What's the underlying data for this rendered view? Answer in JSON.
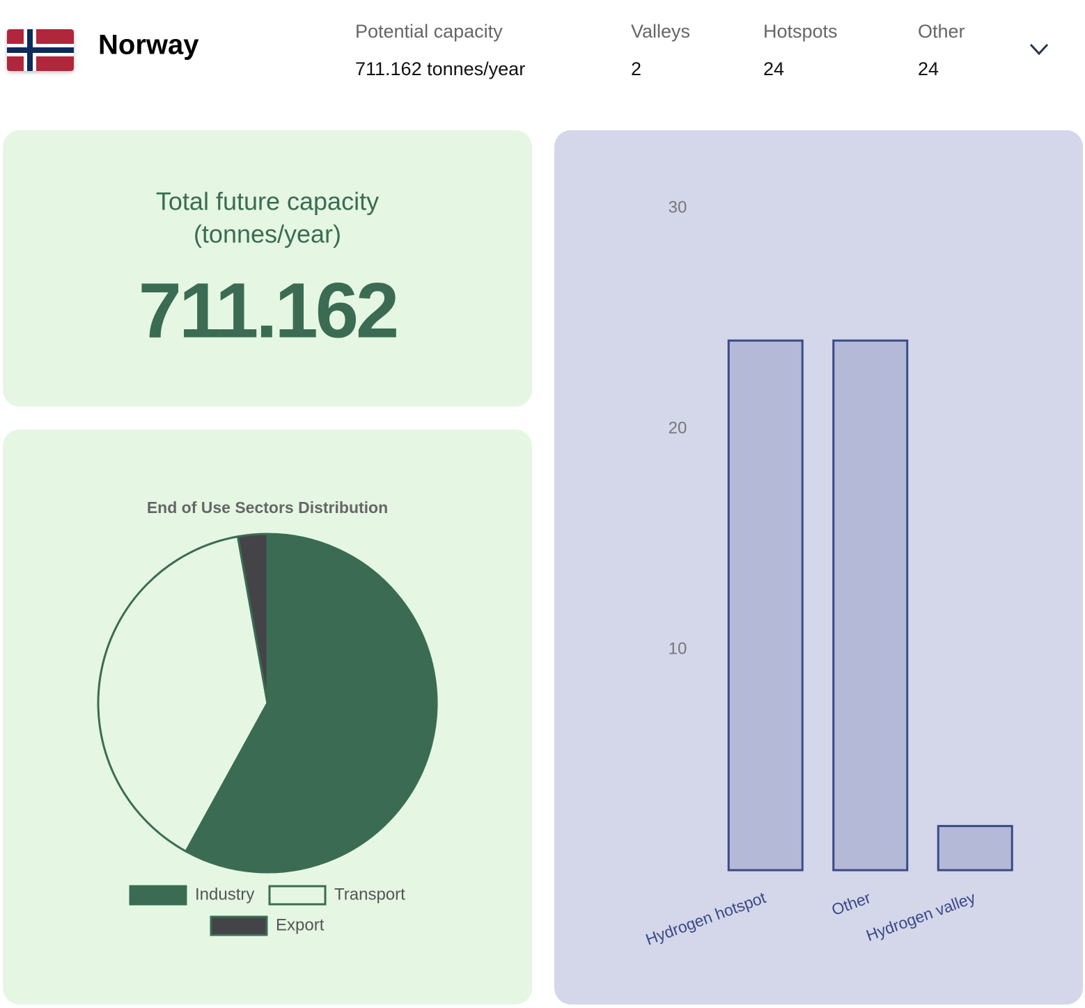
{
  "header": {
    "country": "Norway",
    "stats": [
      {
        "label": "Potential capacity",
        "value": "711.162 tonnes/year"
      },
      {
        "label": "Valleys",
        "value": 2
      },
      {
        "label": "Hotspots",
        "value": 24
      },
      {
        "label": "Other",
        "value": 24
      }
    ]
  },
  "summary": {
    "title": [
      "Total future capacity",
      "(tonnes/year)"
    ],
    "value": "711.162"
  },
  "chart_data": [
    {
      "type": "pie",
      "title": "End of Use Sectors Distribution",
      "categories": [
        "Industry",
        "Transport",
        "Export"
      ],
      "values": [
        58,
        39.2,
        2.8
      ],
      "colors": [
        "#3b6c53",
        "#e5f7e3",
        "#444448"
      ],
      "edge_color": "#3b6c53"
    },
    {
      "type": "bar",
      "categories": [
        "Hydrogen hotspot",
        "Other",
        "Hydrogen valley"
      ],
      "values": [
        24,
        24,
        2
      ],
      "color": "#b5b9d8",
      "edge_color": "#3a4a86",
      "ylim": [
        0,
        30
      ],
      "yticks": [
        10,
        20,
        30
      ],
      "grid": false
    }
  ]
}
